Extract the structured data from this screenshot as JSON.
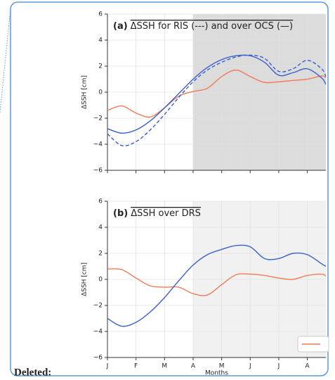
{
  "chart_data": [
    {
      "type": "line",
      "title_tag": "(a)",
      "title": "ΔSSH for RIS (---) and over OCS  (—)",
      "ylabel": "ΔSSH  [cm]",
      "x": [
        0,
        0.5,
        1,
        1.5,
        2,
        2.5,
        3,
        3.5,
        4,
        4.5,
        5,
        5.5,
        6,
        6.5,
        7,
        7.5,
        7.65
      ],
      "xlim": [
        0,
        7.65
      ],
      "xticks": [
        0,
        1,
        2,
        3,
        4,
        5,
        6,
        7
      ],
      "ylim": [
        -6,
        6
      ],
      "yticks": [
        {
          "value": -6,
          "label": "−6"
        },
        {
          "value": -4,
          "label": "−4"
        },
        {
          "value": -2,
          "label": "−2"
        },
        0,
        2,
        4,
        6
      ],
      "grid": true,
      "shaded_from": 3,
      "shade_color": "#dcdcdc",
      "series": [
        {
          "color": "#f47a55",
          "dash": false,
          "values": [
            -1.4,
            -1.05,
            -1.6,
            -1.9,
            -1.2,
            -0.3,
            0.05,
            0.3,
            1.2,
            1.7,
            1.2,
            0.75,
            0.8,
            0.9,
            1.0,
            1.25,
            1.1
          ]
        },
        {
          "color": "#3a5fcd",
          "dash": false,
          "values": [
            -2.8,
            -3.15,
            -2.9,
            -2.2,
            -1.2,
            -0.1,
            1.0,
            1.9,
            2.5,
            2.8,
            2.8,
            2.3,
            1.3,
            1.5,
            1.8,
            1.1,
            0.6
          ]
        },
        {
          "color": "#3a5fcd",
          "dash": true,
          "values": [
            -3.2,
            -4.1,
            -3.8,
            -2.9,
            -1.7,
            -0.4,
            0.8,
            1.7,
            2.3,
            2.7,
            2.85,
            2.6,
            1.6,
            1.8,
            2.45,
            1.8,
            1.2
          ]
        }
      ]
    },
    {
      "type": "line",
      "title_tag": "(b)",
      "title": "ΔSSH over DRS",
      "ylabel": "ΔSSH  [cm]",
      "xlabel": "Months",
      "x": [
        0,
        0.5,
        1,
        1.5,
        2,
        2.5,
        3,
        3.5,
        4,
        4.5,
        5,
        5.5,
        6,
        6.5,
        7,
        7.5,
        7.65
      ],
      "xlim": [
        0,
        7.65
      ],
      "xticks": [
        {
          "value": 0,
          "label": "J"
        },
        {
          "value": 1,
          "label": "F"
        },
        {
          "value": 2,
          "label": "M"
        },
        {
          "value": 3,
          "label": "A"
        },
        {
          "value": 4,
          "label": "M"
        },
        {
          "value": 5,
          "label": "J"
        },
        {
          "value": 6,
          "label": "J"
        },
        {
          "value": 7,
          "label": "A"
        }
      ],
      "ylim": [
        -6,
        6
      ],
      "yticks": [
        {
          "value": -6,
          "label": "−6"
        },
        {
          "value": -4,
          "label": "−4"
        },
        {
          "value": -2,
          "label": "−2"
        },
        0,
        2,
        4,
        6
      ],
      "grid": true,
      "shaded_from": 3,
      "shade_color": "#f1f1f1",
      "series": [
        {
          "color": "#f47a55",
          "dash": false,
          "values": [
            0.8,
            0.75,
            0.1,
            -0.5,
            -0.6,
            -0.6,
            -1.1,
            -1.2,
            -0.4,
            0.35,
            0.4,
            0.3,
            0.1,
            0.0,
            0.3,
            0.4,
            0.25
          ]
        },
        {
          "color": "#3a5fcd",
          "dash": false,
          "values": [
            -3.0,
            -3.6,
            -3.3,
            -2.5,
            -1.4,
            -0.1,
            1.1,
            1.9,
            2.3,
            2.6,
            2.5,
            1.6,
            1.6,
            2.0,
            1.9,
            1.2,
            1.0
          ]
        }
      ]
    }
  ],
  "deleted_label": "Deleted:"
}
